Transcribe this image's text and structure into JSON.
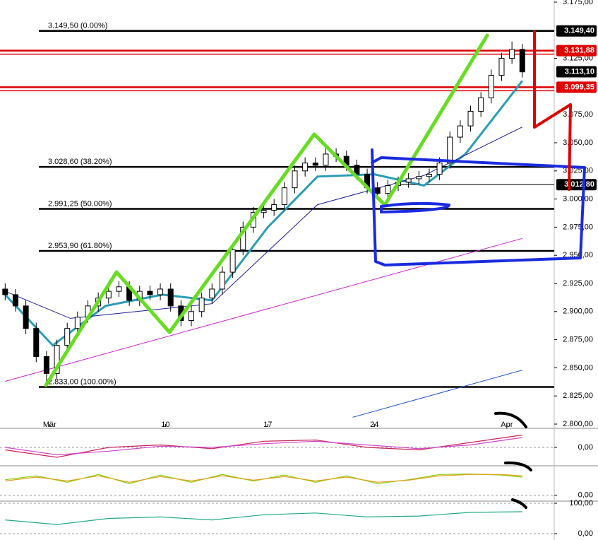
{
  "chart_data": [
    {
      "type": "candlestick",
      "up_color": "#ffffff",
      "down_color": "#000000",
      "xlim": [
        -0.5,
        56.5
      ],
      "ylim": [
        2800,
        3175
      ],
      "yticks": [
        {
          "value": 2800,
          "label": "2.800,00"
        },
        {
          "value": 2825,
          "label": "2.825,00"
        },
        {
          "value": 2850,
          "label": "2.850,00"
        },
        {
          "value": 2875,
          "label": "2.875,00"
        },
        {
          "value": 2900,
          "label": "2.900,00"
        },
        {
          "value": 2925,
          "label": "2.925,00"
        },
        {
          "value": 2950,
          "label": "2.950,00"
        },
        {
          "value": 2975,
          "label": "2.975,00"
        },
        {
          "value": 3000,
          "label": "3.000,00"
        },
        {
          "value": 3025,
          "label": "3.025,00"
        },
        {
          "value": 3050,
          "label": "3.050,00"
        },
        {
          "value": 3075,
          "label": "3.075,00"
        },
        {
          "value": 3125,
          "label": "3.125,00"
        },
        {
          "value": 3175,
          "label": "3.175,00"
        }
      ],
      "xticks": [
        {
          "value": 4.3,
          "label": "Mär"
        },
        {
          "value": 15.5,
          "label": "10"
        },
        {
          "value": 25.4,
          "label": "17"
        },
        {
          "value": 35.7,
          "label": "24"
        },
        {
          "value": 48.5,
          "label": "Apr"
        }
      ],
      "x": [
        0,
        1,
        2,
        3,
        4,
        5,
        6,
        7,
        8,
        9,
        10,
        11,
        12,
        13,
        14,
        15,
        16,
        17,
        18,
        19,
        20,
        21,
        22,
        23,
        24,
        25,
        26,
        27,
        28,
        29,
        30,
        31,
        32,
        33,
        34,
        35,
        36,
        37,
        38,
        39,
        40,
        41,
        42,
        43,
        44,
        45,
        46,
        47,
        48,
        49,
        50
      ],
      "open": [
        2920,
        2915,
        2905,
        2885,
        2860,
        2845,
        2870,
        2885,
        2895,
        2905,
        2912,
        2918,
        2922,
        2910,
        2918,
        2915,
        2920,
        2905,
        2892,
        2900,
        2912,
        2920,
        2935,
        2955,
        2975,
        2988,
        2990,
        2995,
        3010,
        3025,
        3032,
        3030,
        3040,
        3038,
        3030,
        3022,
        3010,
        3005,
        3012,
        3015,
        3018,
        3020,
        3022,
        3032,
        3055,
        3065,
        3078,
        3090,
        3110,
        3125,
        3133
      ],
      "high": [
        2925,
        2920,
        2910,
        2890,
        2865,
        2875,
        2890,
        2900,
        2910,
        2917,
        2923,
        2927,
        2927,
        2923,
        2923,
        2925,
        2925,
        2910,
        2905,
        2917,
        2925,
        2940,
        2960,
        2980,
        2993,
        2995,
        3000,
        3015,
        3030,
        3037,
        3037,
        3045,
        3045,
        3043,
        3035,
        3027,
        3015,
        3017,
        3020,
        3023,
        3025,
        3027,
        3037,
        3060,
        3070,
        3083,
        3095,
        3115,
        3130,
        3140,
        3138
      ],
      "low": [
        2910,
        2900,
        2880,
        2855,
        2833,
        2840,
        2865,
        2880,
        2890,
        2900,
        2907,
        2913,
        2905,
        2905,
        2910,
        2910,
        2900,
        2887,
        2887,
        2895,
        2907,
        2915,
        2930,
        2950,
        2970,
        2983,
        2985,
        2990,
        3005,
        3020,
        3025,
        3025,
        3033,
        3025,
        3017,
        3005,
        3000,
        3000,
        3007,
        3010,
        3013,
        3015,
        3017,
        3027,
        3050,
        3060,
        3073,
        3085,
        3105,
        3120,
        3108
      ],
      "close": [
        2915,
        2905,
        2885,
        2860,
        2845,
        2870,
        2885,
        2895,
        2905,
        2912,
        2918,
        2922,
        2910,
        2918,
        2915,
        2920,
        2905,
        2892,
        2900,
        2912,
        2920,
        2935,
        2955,
        2975,
        2988,
        2990,
        2995,
        3010,
        3025,
        3032,
        3030,
        3040,
        3038,
        3030,
        3022,
        3010,
        3005,
        3012,
        3015,
        3018,
        3020,
        3022,
        3032,
        3055,
        3065,
        3078,
        3090,
        3110,
        3125,
        3133,
        3113
      ],
      "series": [
        {
          "color": "#2a9db5",
          "width": 3,
          "x": [
            0,
            4.6,
            9.7,
            15.2,
            20,
            25.4,
            30.2,
            35.7,
            40.5,
            44.5,
            50
          ],
          "values": [
            2915,
            2870,
            2905,
            2915,
            2910,
            2975,
            3020,
            3022,
            3012,
            3040,
            3105
          ]
        },
        {
          "color": "#1a1a9a",
          "width": 1,
          "x": [
            0,
            6.3,
            20,
            30.2,
            40.5,
            50
          ],
          "values": [
            2918,
            2894,
            2907,
            2995,
            3021,
            3064
          ]
        },
        {
          "color": "#cc22cc",
          "width": 1,
          "x": [
            0,
            50
          ],
          "values": [
            2838,
            2965
          ]
        },
        {
          "color": "#2255cc",
          "width": 1,
          "x": [
            33.6,
            50
          ],
          "values": [
            2806,
            2848
          ]
        }
      ],
      "levels": [
        {
          "value": 3149.5,
          "label": "3.149,50 (0.00%)"
        },
        {
          "value": 3028.6,
          "label": "3.028,60 (38.20%)"
        },
        {
          "value": 2991.25,
          "label": "2.991,25 (50.00%)"
        },
        {
          "value": 2953.9,
          "label": "2.953,90 (61.80%)"
        },
        {
          "value": 2833,
          "label": "2.833,00 (100.00%)"
        }
      ],
      "price_tags": [
        {
          "value": 3149.4,
          "label": "3.149,40",
          "color": "#000000"
        },
        {
          "value": 3131.88,
          "label": "3.131,88",
          "color": "#e00000"
        },
        {
          "value": 3113.1,
          "label": "3.113,10",
          "color": "#000000"
        },
        {
          "value": 3099.35,
          "label": "3.099,35",
          "color": "#e00000"
        },
        {
          "value": 3012.8,
          "label": "3.012,80",
          "color": "#000000"
        }
      ]
    },
    {
      "type": "line",
      "ylim": [
        -12,
        12
      ],
      "yticks": [
        {
          "value": 0,
          "label": "0,00"
        }
      ],
      "series": [
        {
          "color": "#cc2255",
          "x": [
            0,
            5,
            10,
            15,
            20,
            25,
            30,
            35,
            40,
            45,
            50
          ],
          "values": [
            -2,
            -8,
            0,
            2,
            -1,
            5,
            6,
            0,
            -2,
            4,
            10
          ]
        },
        {
          "color": "#cc44cc",
          "x": [
            0,
            5,
            10,
            15,
            20,
            25,
            30,
            35,
            40,
            45,
            50
          ],
          "values": [
            0,
            -6,
            -3,
            1,
            0,
            3,
            5,
            2,
            -1,
            2,
            8
          ]
        }
      ]
    },
    {
      "type": "line",
      "ylim": [
        -20,
        100
      ],
      "yticks": [
        {
          "value": 0,
          "label": "0,00"
        }
      ],
      "series": [
        {
          "color": "#88cc00",
          "x": [
            0,
            3,
            6,
            9,
            12,
            15,
            18,
            21,
            24,
            27,
            30,
            33,
            36,
            39,
            42,
            45,
            48,
            50
          ],
          "values": [
            60,
            75,
            50,
            80,
            45,
            78,
            50,
            80,
            55,
            78,
            50,
            75,
            45,
            60,
            80,
            82,
            78,
            70
          ]
        },
        {
          "color": "#e0a020",
          "x": [
            0,
            3,
            6,
            9,
            12,
            15,
            18,
            21,
            24,
            27,
            30,
            33,
            36,
            39,
            42,
            45,
            48,
            50
          ],
          "values": [
            55,
            70,
            55,
            75,
            50,
            72,
            55,
            75,
            58,
            72,
            55,
            70,
            50,
            58,
            75,
            80,
            80,
            75
          ]
        }
      ]
    },
    {
      "type": "line",
      "ylim": [
        0,
        100
      ],
      "yticks": [
        {
          "value": 0,
          "label": "0,00"
        },
        {
          "value": 100,
          "label": "100,00"
        }
      ],
      "series": [
        {
          "color": "#22aa88",
          "x": [
            0,
            5,
            10,
            15,
            20,
            25,
            30,
            35,
            40,
            45,
            50
          ],
          "values": [
            45,
            30,
            50,
            55,
            45,
            62,
            68,
            55,
            58,
            70,
            72
          ]
        }
      ]
    }
  ]
}
